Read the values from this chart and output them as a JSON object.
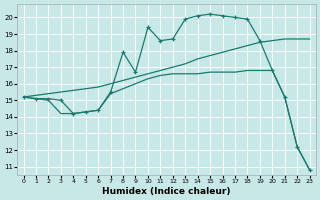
{
  "xlabel": "Humidex (Indice chaleur)",
  "bg_color": "#c8e8e8",
  "line_color": "#1a7a6e",
  "grid_color": "#ffffff",
  "xlim": [
    -0.5,
    23.5
  ],
  "ylim": [
    10.5,
    20.8
  ],
  "xticks": [
    0,
    1,
    2,
    3,
    4,
    5,
    6,
    7,
    8,
    9,
    10,
    11,
    12,
    13,
    14,
    15,
    16,
    17,
    18,
    19,
    20,
    21,
    22,
    23
  ],
  "yticks": [
    11,
    12,
    13,
    14,
    15,
    16,
    17,
    18,
    19,
    20
  ],
  "line_zigzag_x": [
    0,
    1,
    2,
    3,
    4,
    5,
    6,
    7,
    8,
    9,
    10,
    11,
    12,
    13,
    14,
    15,
    16,
    17,
    18,
    19,
    20,
    21,
    22,
    23
  ],
  "line_zigzag_y": [
    15.2,
    15.1,
    15.1,
    15.0,
    14.2,
    14.3,
    14.4,
    15.5,
    17.9,
    16.7,
    19.4,
    18.6,
    18.7,
    19.9,
    20.1,
    20.2,
    20.1,
    20.0,
    19.9,
    18.6,
    16.8,
    15.2,
    12.2,
    10.8
  ],
  "line_upper_x": [
    0,
    1,
    2,
    3,
    4,
    5,
    6,
    7,
    8,
    9,
    10,
    11,
    12,
    13,
    14,
    15,
    16,
    17,
    18,
    19,
    20,
    21,
    22,
    23
  ],
  "line_upper_y": [
    15.2,
    15.3,
    15.4,
    15.5,
    15.6,
    15.7,
    15.8,
    16.0,
    16.2,
    16.4,
    16.6,
    16.8,
    17.0,
    17.2,
    17.5,
    17.7,
    17.9,
    18.1,
    18.3,
    18.5,
    18.6,
    18.7,
    18.7,
    18.7
  ],
  "line_lower_x": [
    0,
    1,
    2,
    3,
    4,
    5,
    6,
    7,
    8,
    9,
    10,
    11,
    12,
    13,
    14,
    15,
    16,
    17,
    18,
    19,
    20,
    21,
    22,
    23
  ],
  "line_lower_y": [
    15.2,
    15.1,
    15.0,
    14.2,
    14.2,
    14.3,
    14.4,
    15.4,
    15.7,
    16.0,
    16.3,
    16.5,
    16.6,
    16.6,
    16.6,
    16.7,
    16.7,
    16.7,
    16.8,
    16.8,
    16.8,
    15.2,
    12.2,
    10.8
  ]
}
